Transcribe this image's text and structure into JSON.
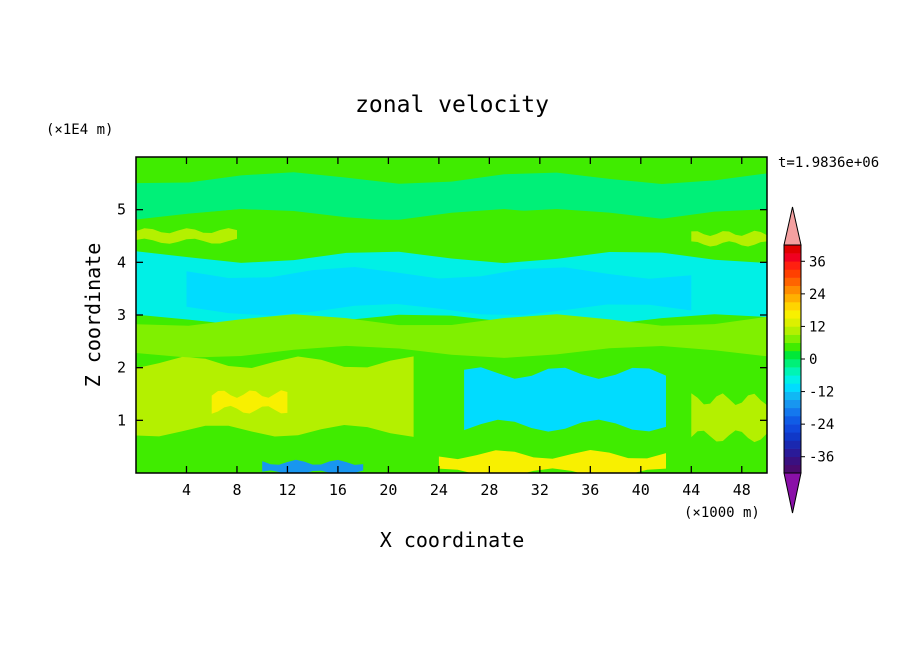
{
  "chart_data": {
    "type": "heatmap",
    "title": "zonal velocity",
    "xlabel": "X coordinate",
    "ylabel": "Z coordinate",
    "x_unit": "(×1000 m)",
    "y_unit": "(×1E4 m)",
    "time_label": "t=1.9836e+06",
    "xlim": [
      0,
      50
    ],
    "ylim": [
      0,
      6
    ],
    "x_ticks": [
      4,
      8,
      12,
      16,
      20,
      24,
      28,
      32,
      36,
      40,
      44,
      48
    ],
    "y_ticks": [
      1,
      2,
      3,
      4,
      5
    ],
    "x_tick_labels": [
      "4",
      "8",
      "12",
      "16",
      "20",
      "24",
      "28",
      "32",
      "36",
      "40",
      "44",
      "48"
    ],
    "y_tick_labels": [
      "1",
      "2",
      "3",
      "4",
      "5"
    ],
    "colorbar": {
      "levels": [
        -42,
        -39,
        -36,
        -33,
        -30,
        -27,
        -24,
        -21,
        -18,
        -15,
        -12,
        -9,
        -6,
        -3,
        0,
        3,
        6,
        9,
        12,
        15,
        18,
        21,
        24,
        27,
        30,
        33,
        36,
        39,
        42
      ],
      "colors": [
        "#4a0a6e",
        "#3a1080",
        "#2a1a98",
        "#1a28b0",
        "#1038c8",
        "#1048dc",
        "#105ce6",
        "#1478ee",
        "#1896f0",
        "#10b8f4",
        "#00dcff",
        "#00f0e6",
        "#00f4b4",
        "#00f078",
        "#00e838",
        "#40ec00",
        "#80f000",
        "#b4f000",
        "#dcf000",
        "#f8f000",
        "#ffd400",
        "#ffb000",
        "#ff8c00",
        "#ff6400",
        "#ff4000",
        "#ff2010",
        "#f00020",
        "#e00000"
      ],
      "tick_values": [
        36,
        24,
        12,
        0,
        -12,
        -24,
        -36
      ],
      "tick_labels": [
        "36",
        "24",
        "12",
        "0",
        "-12",
        "-24",
        "-36"
      ],
      "over_color": "#f4a0a0",
      "under_color": "#8a10a8"
    },
    "regions": [
      {
        "name": "top-band",
        "color": "#40ec00",
        "x": [
          0,
          50
        ],
        "z": [
          5.6,
          6.0
        ]
      },
      {
        "name": "upper-teal",
        "color": "#00f078",
        "x": [
          0,
          50
        ],
        "z": [
          4.9,
          5.6
        ]
      },
      {
        "name": "mid-green",
        "color": "#40ec00",
        "x": [
          0,
          50
        ],
        "z": [
          4.1,
          4.9
        ]
      },
      {
        "name": "yellow-green-streak-left",
        "color": "#b4f000",
        "x": [
          0,
          8
        ],
        "z": [
          4.4,
          4.6
        ]
      },
      {
        "name": "yellow-green-streak-right",
        "color": "#b4f000",
        "x": [
          44,
          50
        ],
        "z": [
          4.35,
          4.55
        ]
      },
      {
        "name": "cyan-layer",
        "color": "#00f0e6",
        "x": [
          0,
          50
        ],
        "z": [
          2.9,
          4.1
        ]
      },
      {
        "name": "light-cyan-core",
        "color": "#00dcff",
        "x": [
          4,
          44
        ],
        "z": [
          3.1,
          3.8
        ]
      },
      {
        "name": "mid-yellow-green",
        "color": "#80f000",
        "x": [
          0,
          50
        ],
        "z": [
          2.3,
          2.9
        ]
      },
      {
        "name": "lower-yellow-green",
        "color": "#b4f000",
        "x": [
          0,
          22
        ],
        "z": [
          0.8,
          2.1
        ]
      },
      {
        "name": "lower-yellow",
        "color": "#f8f000",
        "x": [
          6,
          12
        ],
        "z": [
          1.2,
          1.5
        ]
      },
      {
        "name": "lower-cyan-tongue",
        "color": "#00dcff",
        "x": [
          26,
          42
        ],
        "z": [
          0.9,
          1.9
        ]
      },
      {
        "name": "right-yellow-green",
        "color": "#b4f000",
        "x": [
          44,
          50
        ],
        "z": [
          0.7,
          1.4
        ]
      },
      {
        "name": "bottom-blue",
        "color": "#1896f0",
        "x": [
          10,
          18
        ],
        "z": [
          0.0,
          0.2
        ]
      },
      {
        "name": "bottom-yellow",
        "color": "#f8f000",
        "x": [
          24,
          42
        ],
        "z": [
          0.0,
          0.35
        ]
      }
    ]
  }
}
